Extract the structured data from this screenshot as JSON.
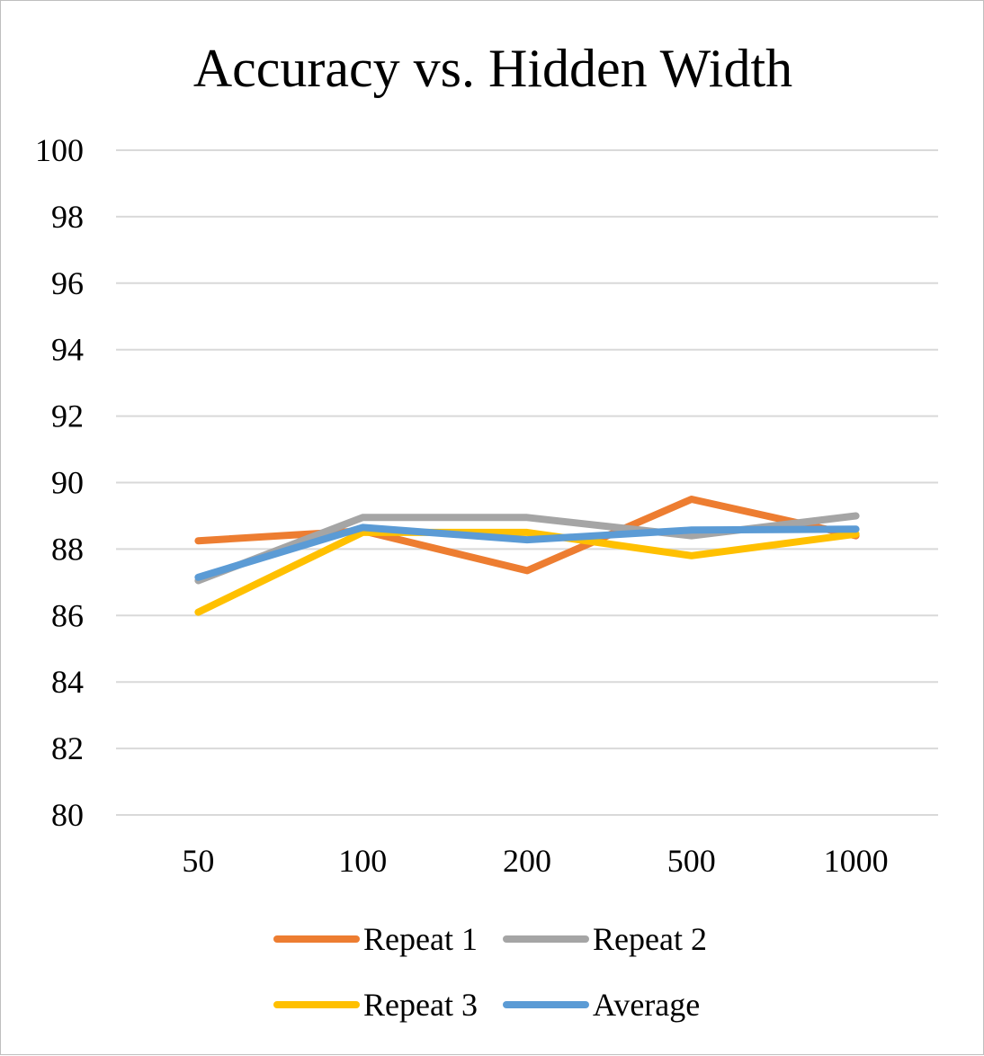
{
  "chart_data": {
    "type": "line",
    "title": "Accuracy vs. Hidden Width",
    "xlabel": "",
    "ylabel": "",
    "categories": [
      "50",
      "100",
      "200",
      "500",
      "1000"
    ],
    "ylim": [
      80,
      100
    ],
    "yticks": [
      80,
      82,
      84,
      86,
      88,
      90,
      92,
      94,
      96,
      98,
      100
    ],
    "grid": true,
    "legend_position": "bottom",
    "series": [
      {
        "name": "Repeat 1",
        "color": "#ed7d31",
        "values": [
          88.25,
          88.55,
          87.35,
          89.5,
          88.4
        ]
      },
      {
        "name": "Repeat 2",
        "color": "#a5a5a5",
        "values": [
          87.05,
          88.95,
          88.95,
          88.4,
          89.0
        ]
      },
      {
        "name": "Repeat 3",
        "color": "#ffc000",
        "values": [
          86.1,
          88.5,
          88.5,
          87.8,
          88.45
        ]
      },
      {
        "name": "Average",
        "color": "#5b9bd5",
        "values": [
          87.15,
          88.65,
          88.28,
          88.57,
          88.6
        ]
      }
    ]
  }
}
